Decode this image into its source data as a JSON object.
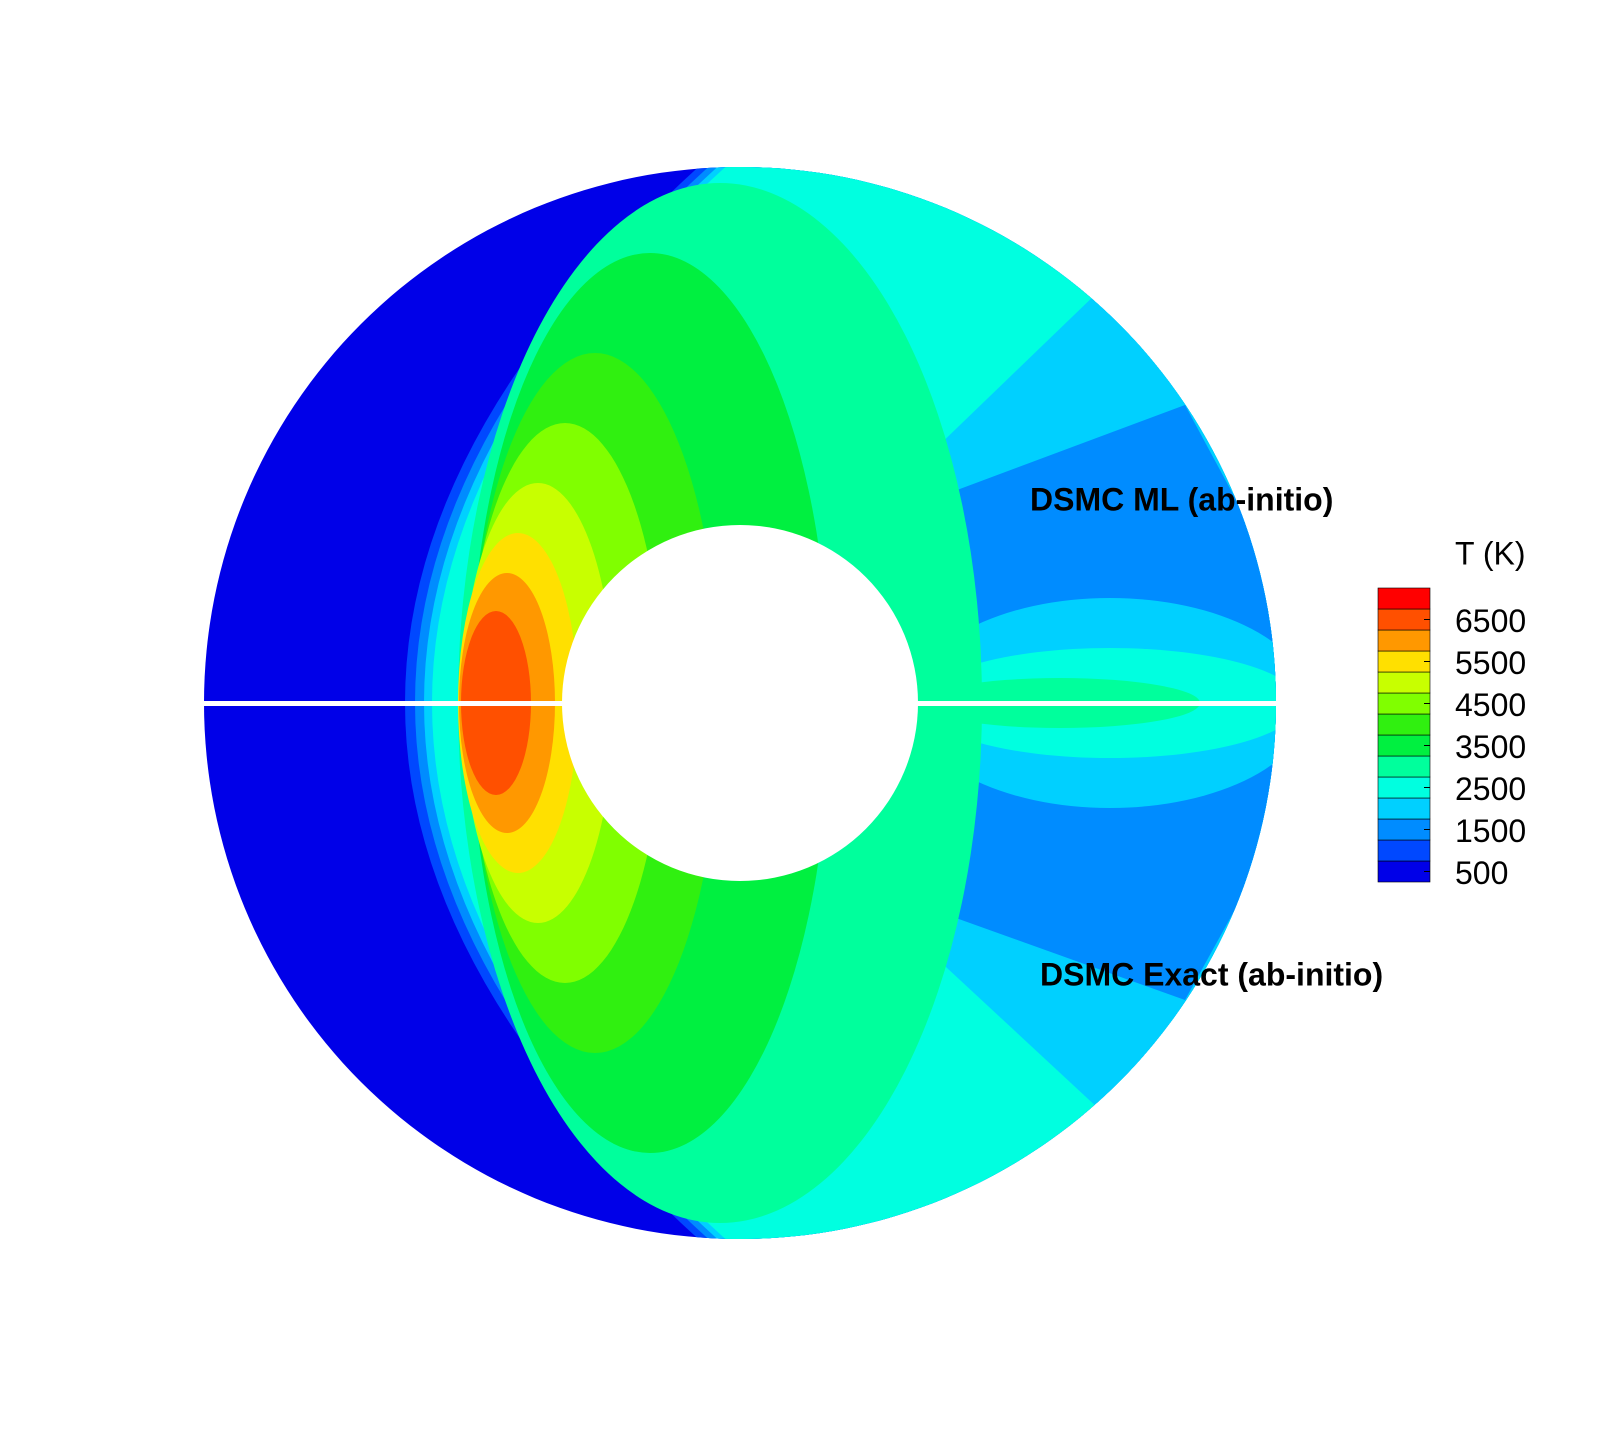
{
  "chart_data": {
    "type": "contour",
    "annotations": [
      "DSMC ML (ab-initio)",
      "DSMC Exact (ab-initio)"
    ],
    "colorbar": {
      "title": "T (K)",
      "levels": [
        500,
        1000,
        1500,
        2000,
        2500,
        3000,
        3500,
        4000,
        4500,
        5000,
        5500,
        6000,
        6500,
        7000
      ],
      "colors": [
        "#0000e8",
        "#0048ff",
        "#008cff",
        "#00d0ff",
        "#00ffe0",
        "#00ff9c",
        "#00f040",
        "#30f010",
        "#80ff00",
        "#c8ff00",
        "#ffe000",
        "#ff9800",
        "#ff5000",
        "#ff0000"
      ],
      "ticks": [
        500,
        1500,
        2500,
        3500,
        4500,
        5500,
        6500
      ]
    }
  }
}
